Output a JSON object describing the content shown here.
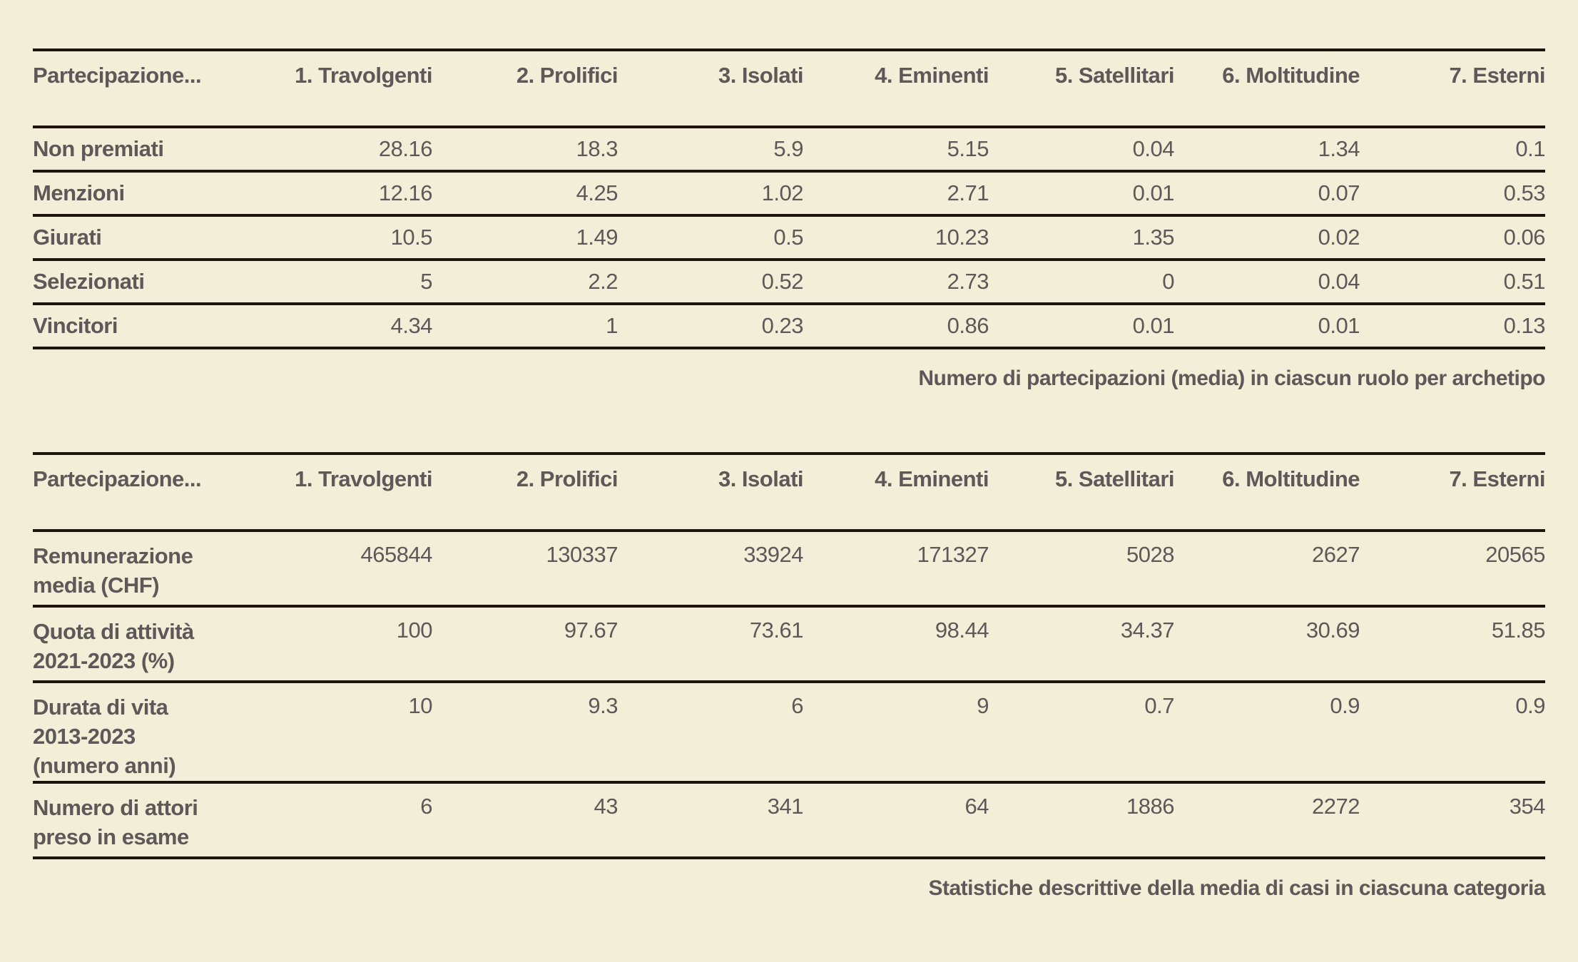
{
  "colors": {
    "background": "#f2eed8",
    "text": "#5e5858",
    "rule": "#1c140d"
  },
  "chart_data": [
    {
      "type": "table",
      "title": "Numero di partecipazioni (media) in ciascun ruolo per archetipo",
      "title_position": "bottom-right",
      "columns": [
        "Partecipazione...",
        "1. Travolgenti",
        "2. Prolifici",
        "3. Isolati",
        "4. Eminenti",
        "5. Satellitari",
        "6. Moltitudine",
        "7. Esterni"
      ],
      "rows": [
        {
          "label": "Non premiati",
          "values": [
            28.16,
            18.3,
            5.9,
            5.15,
            0.04,
            1.34,
            0.1
          ]
        },
        {
          "label": "Menzioni",
          "values": [
            12.16,
            4.25,
            1.02,
            2.71,
            0.01,
            0.07,
            0.53
          ]
        },
        {
          "label": "Giurati",
          "values": [
            10.5,
            1.49,
            0.5,
            10.23,
            1.35,
            0.02,
            0.06
          ]
        },
        {
          "label": "Selezionati",
          "values": [
            5,
            2.2,
            0.52,
            2.73,
            0,
            0.04,
            0.51
          ]
        },
        {
          "label": "Vincitori",
          "values": [
            4.34,
            1,
            0.23,
            0.86,
            0.01,
            0.01,
            0.13
          ]
        }
      ]
    },
    {
      "type": "table",
      "title": "Statistiche descrittive della media di casi in ciascuna categoria",
      "title_position": "bottom-right",
      "columns": [
        "Partecipazione...",
        "1. Travolgenti",
        "2. Prolifici",
        "3. Isolati",
        "4. Eminenti",
        "5. Satellitari",
        "6. Moltitudine",
        "7. Esterni"
      ],
      "rows": [
        {
          "label": "Remunerazione media (CHF)",
          "label_lines": [
            "Remunerazione",
            "media (CHF)"
          ],
          "values": [
            465844,
            130337,
            33924,
            171327,
            5028,
            2627,
            20565
          ]
        },
        {
          "label": "Quota di attività 2021-2023 (%)",
          "label_lines": [
            "Quota di attività",
            "2021-2023 (%)"
          ],
          "values": [
            100,
            97.67,
            73.61,
            98.44,
            34.37,
            30.69,
            51.85
          ]
        },
        {
          "label": "Durata di vita 2013-2023 (numero anni)",
          "label_lines": [
            "Durata di vita",
            "2013-2023",
            "(numero anni)"
          ],
          "values": [
            10,
            9.3,
            6,
            9,
            0.7,
            0.9,
            0.9
          ]
        },
        {
          "label": "Numero di attori preso in esame",
          "label_lines": [
            "Numero di attori",
            "preso in esame"
          ],
          "values": [
            6,
            43,
            341,
            64,
            1886,
            2272,
            354
          ]
        }
      ]
    }
  ]
}
